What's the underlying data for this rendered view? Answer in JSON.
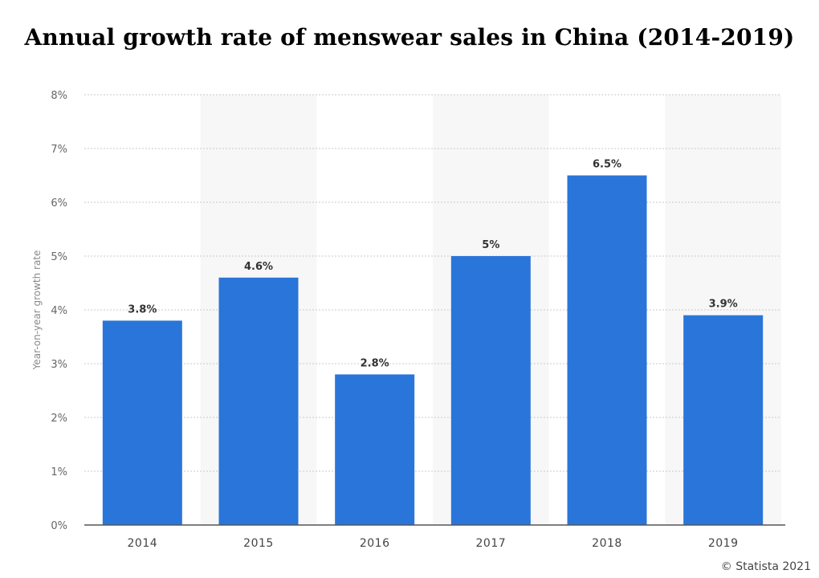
{
  "chart_data": {
    "type": "bar",
    "title": "Annual growth rate of menswear sales in China (2014-2019)",
    "ylabel": "Year-on-year growth rate",
    "xlabel": "",
    "categories": [
      "2014",
      "2015",
      "2016",
      "2017",
      "2018",
      "2019"
    ],
    "values": [
      3.8,
      4.6,
      2.8,
      5,
      6.5,
      3.9
    ],
    "value_labels": [
      "3.8%",
      "4.6%",
      "2.8%",
      "5%",
      "6.5%",
      "3.9%"
    ],
    "ylim": [
      0,
      8
    ],
    "yticks": [
      0,
      1,
      2,
      3,
      4,
      5,
      6,
      7,
      8
    ],
    "ytick_labels": [
      "0%",
      "1%",
      "2%",
      "3%",
      "4%",
      "5%",
      "6%",
      "7%",
      "8%"
    ],
    "grid": true,
    "bar_color": "#2a75d9",
    "alt_band_color": "#f7f7f7"
  },
  "credit": "© Statista 2021"
}
